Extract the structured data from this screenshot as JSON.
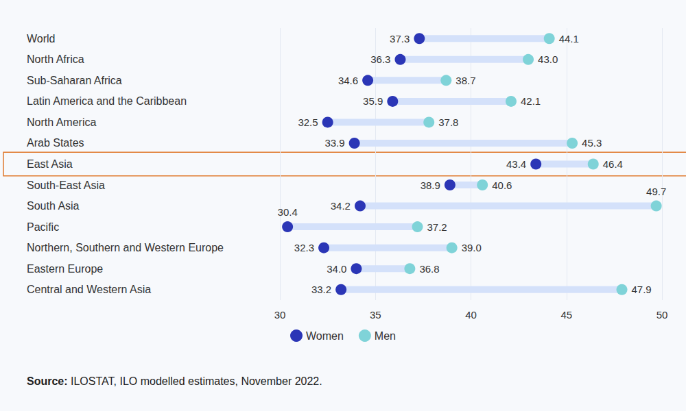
{
  "chart_data": {
    "type": "dumbbell",
    "orientation": "horizontal",
    "categories": [
      "World",
      "North Africa",
      "Sub-Saharan Africa",
      "Latin America and the Caribbean",
      "North America",
      "Arab States",
      "East Asia",
      "South-East Asia",
      "South Asia",
      "Pacific",
      "Northern, Southern and Western Europe",
      "Eastern Europe",
      "Central and Western Asia"
    ],
    "series": [
      {
        "name": "Women",
        "color": "#2b36b6",
        "marker": "circle",
        "values": [
          37.3,
          36.3,
          34.6,
          35.9,
          32.5,
          33.9,
          43.4,
          38.9,
          34.2,
          30.4,
          32.3,
          34.0,
          33.2
        ],
        "value_labels": [
          "37.3",
          "36.3",
          "34.6",
          "35.9",
          "32.5",
          "33.9",
          "43.4",
          "38.9",
          "34.2",
          "30.4",
          "32.3",
          "34.0",
          "33.2"
        ]
      },
      {
        "name": "Men",
        "color": "#7fd3d8",
        "marker": "circle",
        "values": [
          44.1,
          43.0,
          38.7,
          42.1,
          37.8,
          45.3,
          46.4,
          40.6,
          49.7,
          37.2,
          39.0,
          36.8,
          47.9
        ],
        "value_labels": [
          "44.1",
          "43.0",
          "38.7",
          "42.1",
          "37.8",
          "45.3",
          "46.4",
          "40.6",
          "49.7",
          "37.2",
          "39.0",
          "36.8",
          "47.9"
        ]
      }
    ],
    "xlim": [
      30,
      50
    ],
    "xticks": [
      30,
      35,
      40,
      45,
      50
    ],
    "grid": true,
    "data_labels": true,
    "legend": "bottom",
    "annotation": "Source: ILOSTAT, ILO modelled estimates, November 2022."
  }
}
